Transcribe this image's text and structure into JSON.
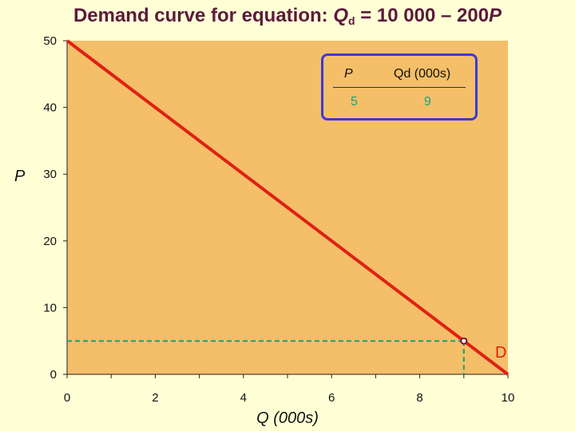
{
  "title": {
    "prefix": "Demand curve for equation: ",
    "q": "Q",
    "sub": "d",
    "mid": " = 10 000 – 200",
    "p": "P"
  },
  "legend_table": {
    "header_p": "P",
    "header_q": "Qd (000s)",
    "row": {
      "p": "5",
      "q": "9"
    }
  },
  "colors": {
    "plot_bg": "#f4bf68",
    "curve": "#e02014",
    "guide": "#14a07a",
    "title": "#5b1a3c",
    "point": "#7a1030",
    "table_value": "#1aa28c",
    "table_border": "#3a3ad8"
  },
  "chart_data": {
    "type": "line",
    "title": "Demand curve for equation: Qd = 10 000 – 200P",
    "xlabel": "Q (000s)",
    "ylabel": "P",
    "xlim": [
      0,
      10
    ],
    "ylim": [
      0,
      50
    ],
    "x_ticks": [
      0,
      2,
      4,
      6,
      8,
      10
    ],
    "y_ticks": [
      0,
      10,
      20,
      30,
      40,
      50
    ],
    "grid": false,
    "series": [
      {
        "name": "D",
        "x": [
          0,
          10
        ],
        "y": [
          50,
          0
        ]
      }
    ],
    "highlight_point": {
      "x": 9,
      "y": 5
    }
  }
}
